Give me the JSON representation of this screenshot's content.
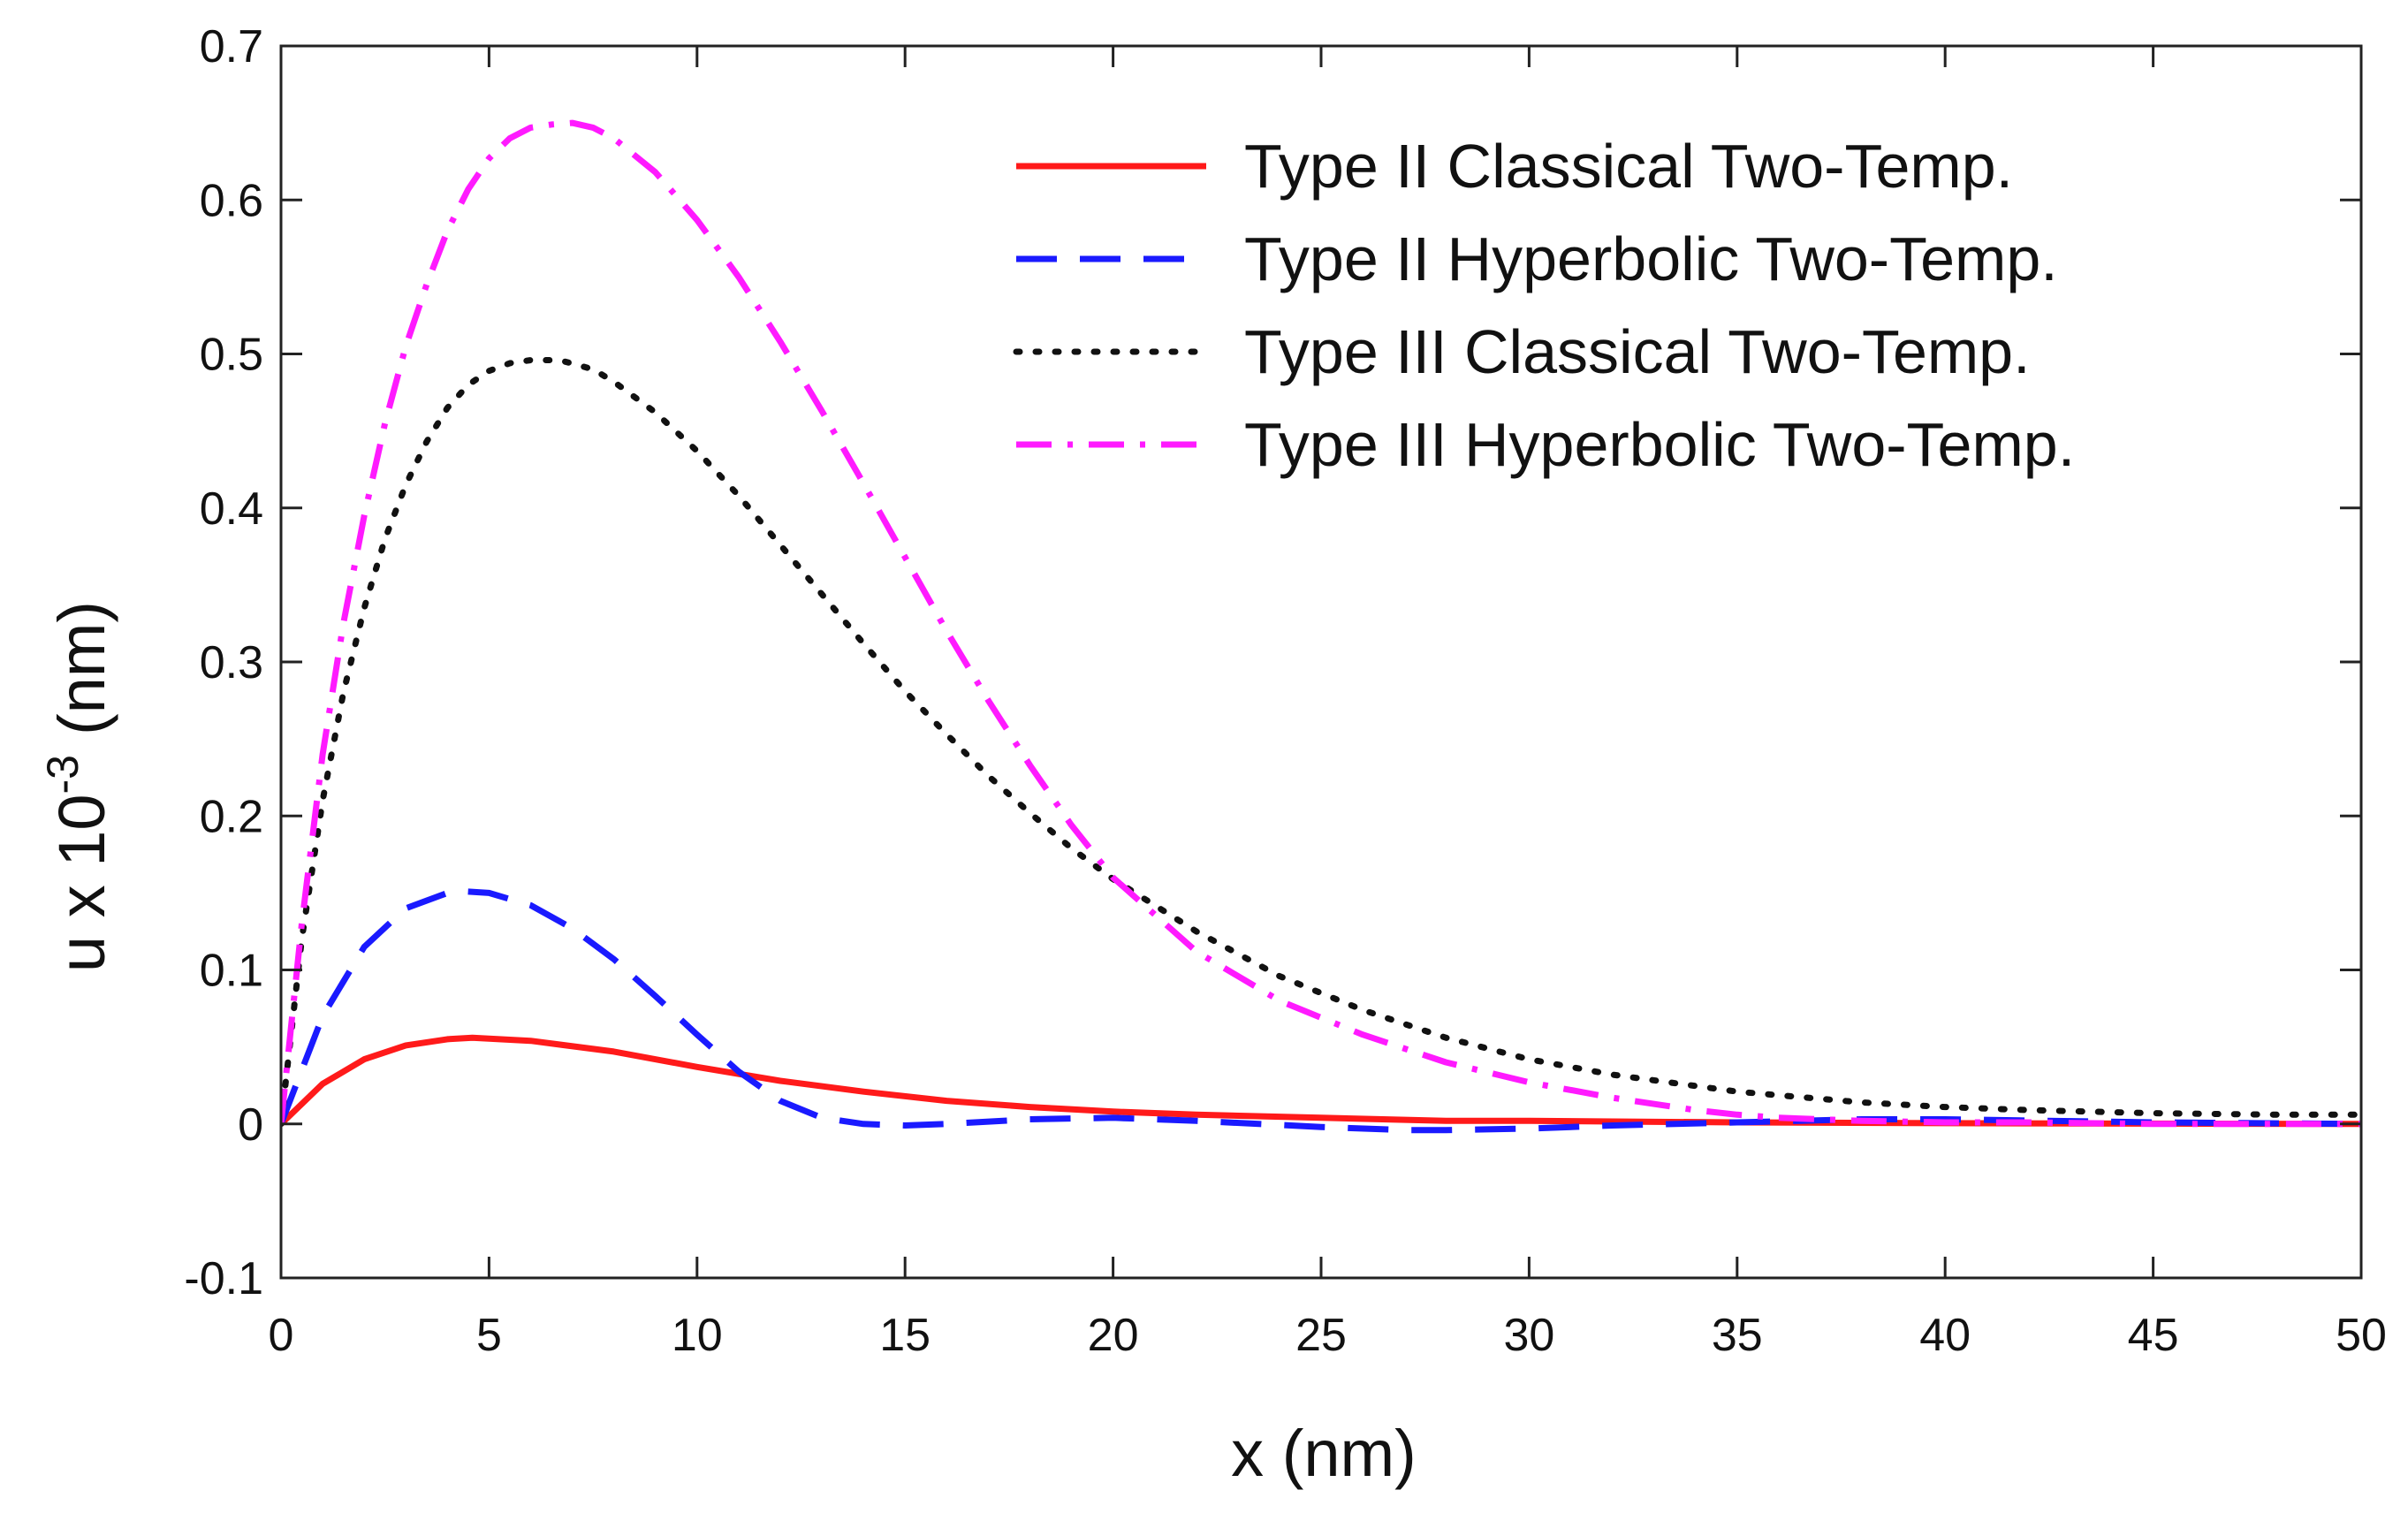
{
  "chart_data": {
    "type": "line",
    "xlabel": "x (nm)",
    "ylabel": {
      "base": "u x 10",
      "exponent": "-3",
      "unit": "(nm)"
    },
    "xlim": [
      0,
      50
    ],
    "ylim": [
      -0.1,
      0.7
    ],
    "xticks": [
      0,
      5,
      10,
      15,
      20,
      25,
      30,
      35,
      40,
      45,
      50
    ],
    "yticks": [
      -0.1,
      0,
      0.1,
      0.2,
      0.3,
      0.4,
      0.5,
      0.6,
      0.7
    ],
    "xtick_labels": [
      "0",
      "5",
      "10",
      "15",
      "20",
      "25",
      "30",
      "35",
      "40",
      "45",
      "50"
    ],
    "ytick_labels": [
      "-0.1",
      "0",
      "0.1",
      "0.2",
      "0.3",
      "0.4",
      "0.5",
      "0.6",
      "0.7"
    ],
    "grid": false,
    "legend_position": "top-right",
    "series": [
      {
        "name": "Type II Classical Two-Temp.",
        "color": "#ff1a1a",
        "style": "solid",
        "x": [
          0,
          1,
          2,
          3,
          4,
          4.6,
          6,
          8,
          10,
          12,
          14,
          16,
          18,
          20,
          22,
          25,
          28,
          30,
          35,
          40,
          45,
          50
        ],
        "y": [
          0,
          0.026,
          0.042,
          0.051,
          0.055,
          0.056,
          0.054,
          0.047,
          0.037,
          0.028,
          0.021,
          0.015,
          0.011,
          0.008,
          0.006,
          0.004,
          0.002,
          0.002,
          0.001,
          0.0005,
          0.0002,
          0
        ]
      },
      {
        "name": "Type II Hyperbolic Two-Temp.",
        "color": "#1a1aff",
        "style": "dashed",
        "x": [
          0,
          1,
          2,
          3,
          4,
          4.4,
          5,
          6,
          7,
          8,
          9,
          10,
          11,
          12,
          13,
          14,
          15,
          16,
          18,
          20,
          22,
          25,
          27,
          28,
          30,
          32,
          35,
          38,
          40,
          45,
          50
        ],
        "y": [
          0,
          0.07,
          0.115,
          0.14,
          0.15,
          0.151,
          0.15,
          0.142,
          0.127,
          0.107,
          0.083,
          0.058,
          0.034,
          0.015,
          0.004,
          0.0,
          -0.001,
          0.0,
          0.003,
          0.004,
          0.002,
          -0.002,
          -0.004,
          -0.004,
          -0.003,
          -0.001,
          0.001,
          0.003,
          0.003,
          0.001,
          0
        ]
      },
      {
        "name": "Type III Classical Two-Temp.",
        "color": "#111111",
        "style": "dotted",
        "x": [
          0,
          0.5,
          1,
          1.5,
          2,
          2.5,
          3,
          3.5,
          4,
          4.5,
          5,
          5.5,
          6,
          6.7,
          7.5,
          8,
          9,
          10,
          11,
          12,
          13,
          14,
          15,
          16,
          17,
          18,
          19,
          20,
          22,
          24,
          26,
          28,
          30,
          32,
          35,
          38,
          40,
          42,
          45,
          48,
          50
        ],
        "y": [
          0,
          0.12,
          0.21,
          0.28,
          0.335,
          0.38,
          0.415,
          0.443,
          0.465,
          0.48,
          0.489,
          0.494,
          0.496,
          0.496,
          0.49,
          0.482,
          0.462,
          0.437,
          0.408,
          0.376,
          0.344,
          0.312,
          0.281,
          0.253,
          0.226,
          0.202,
          0.179,
          0.159,
          0.125,
          0.096,
          0.074,
          0.056,
          0.042,
          0.032,
          0.021,
          0.014,
          0.011,
          0.009,
          0.007,
          0.006,
          0.006
        ]
      },
      {
        "name": "Type III Hyperbolic Two-Temp.",
        "color": "#ff1aff",
        "style": "dashdot",
        "x": [
          0,
          0.5,
          1,
          1.5,
          2,
          2.5,
          3,
          3.5,
          4,
          4.5,
          5,
          5.5,
          6,
          6.5,
          7,
          7.5,
          8,
          9,
          10,
          11,
          12,
          13,
          14,
          15,
          16,
          17,
          18,
          19,
          20,
          22,
          24,
          26,
          28,
          30,
          32,
          34,
          35,
          36,
          38,
          40,
          42,
          45,
          48,
          50
        ],
        "y": [
          0,
          0.13,
          0.24,
          0.325,
          0.395,
          0.455,
          0.505,
          0.545,
          0.58,
          0.607,
          0.627,
          0.64,
          0.647,
          0.649,
          0.65,
          0.647,
          0.64,
          0.618,
          0.587,
          0.55,
          0.508,
          0.463,
          0.416,
          0.368,
          0.32,
          0.275,
          0.233,
          0.194,
          0.16,
          0.112,
          0.08,
          0.058,
          0.04,
          0.027,
          0.017,
          0.009,
          0.006,
          0.004,
          0.002,
          0.001,
          0.001,
          0.0,
          0.0,
          0.0
        ]
      }
    ]
  }
}
